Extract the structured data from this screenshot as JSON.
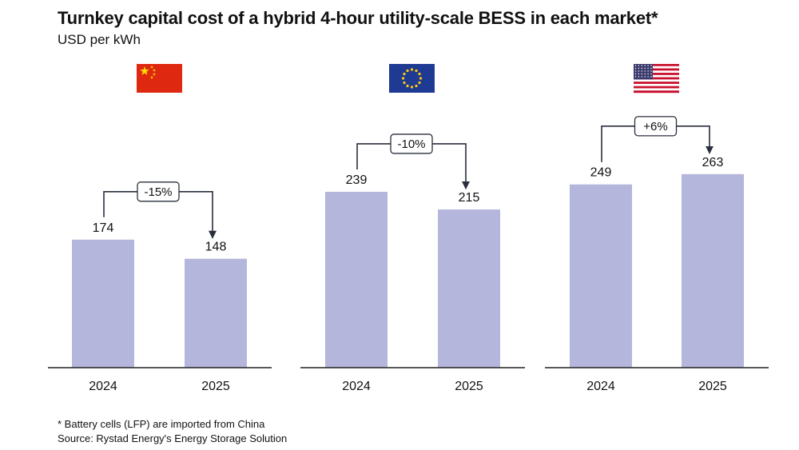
{
  "title": "Turnkey capital cost of a hybrid 4-hour utility-scale BESS in each market*",
  "subtitle": "USD per kWh",
  "footnotes": {
    "note": "* Battery cells (LFP) are imported from China",
    "source": "Source: Rystad Energy's Energy Storage Solution"
  },
  "colors": {
    "bar": "#b5b6dc",
    "axis": "#222222",
    "arrow": "#2a2f3d"
  },
  "chart_data": {
    "type": "bar",
    "title": "Turnkey capital cost of a hybrid 4-hour utility-scale BESS in each market*",
    "ylabel": "USD per kWh",
    "categories": [
      "2024",
      "2025"
    ],
    "ylim": [
      0,
      290
    ],
    "panels": [
      {
        "market": "China",
        "flag": "china-flag",
        "values": [
          174,
          148
        ],
        "change": "-15%"
      },
      {
        "market": "Europe",
        "flag": "eu-flag",
        "values": [
          239,
          215
        ],
        "change": "-10%"
      },
      {
        "market": "United States",
        "flag": "us-flag",
        "values": [
          249,
          263
        ],
        "change": "+6%"
      }
    ]
  }
}
